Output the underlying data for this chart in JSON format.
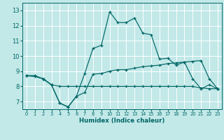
{
  "title": "",
  "xlabel": "Humidex (Indice chaleur)",
  "ylabel": "",
  "bg_color": "#c2e8e8",
  "grid_color": "#ffffff",
  "line_color": "#006666",
  "xlim": [
    -0.5,
    23.5
  ],
  "ylim": [
    6.5,
    13.5
  ],
  "xticks": [
    0,
    1,
    2,
    3,
    4,
    5,
    6,
    7,
    8,
    9,
    10,
    11,
    12,
    13,
    14,
    15,
    16,
    17,
    18,
    19,
    20,
    21,
    22,
    23
  ],
  "yticks": [
    7,
    8,
    9,
    10,
    11,
    12,
    13
  ],
  "line_main_x": [
    0,
    1,
    2,
    3,
    4,
    5,
    6,
    7,
    8,
    9,
    10,
    11,
    12,
    13,
    14,
    15,
    16,
    17,
    18,
    19,
    20,
    21,
    22,
    23
  ],
  "line_main_y": [
    8.7,
    8.7,
    8.5,
    8.1,
    6.9,
    6.65,
    7.35,
    8.85,
    10.5,
    10.7,
    12.9,
    12.2,
    12.2,
    12.5,
    11.5,
    11.4,
    9.8,
    9.85,
    9.4,
    9.6,
    8.5,
    7.85,
    8.1,
    7.85
  ],
  "line_mid_x": [
    0,
    1,
    2,
    3,
    4,
    5,
    6,
    7,
    8,
    9,
    10,
    11,
    12,
    13,
    14,
    15,
    16,
    17,
    18,
    19,
    20,
    21,
    22,
    23
  ],
  "line_mid_y": [
    8.7,
    8.7,
    8.5,
    8.1,
    6.9,
    6.65,
    7.35,
    7.6,
    8.8,
    8.85,
    9.0,
    9.1,
    9.1,
    9.2,
    9.3,
    9.35,
    9.4,
    9.5,
    9.55,
    9.6,
    9.65,
    9.7,
    8.5,
    7.85
  ],
  "line_flat_x": [
    0,
    1,
    2,
    3,
    4,
    5,
    6,
    7,
    8,
    9,
    10,
    11,
    12,
    13,
    14,
    15,
    16,
    17,
    18,
    19,
    20,
    21,
    22,
    23
  ],
  "line_flat_y": [
    8.7,
    8.65,
    8.5,
    8.1,
    8.0,
    8.0,
    8.0,
    8.0,
    8.0,
    8.0,
    8.0,
    8.0,
    8.0,
    8.0,
    8.0,
    8.0,
    8.0,
    8.0,
    8.0,
    8.0,
    8.0,
    7.9,
    7.85,
    7.85
  ]
}
